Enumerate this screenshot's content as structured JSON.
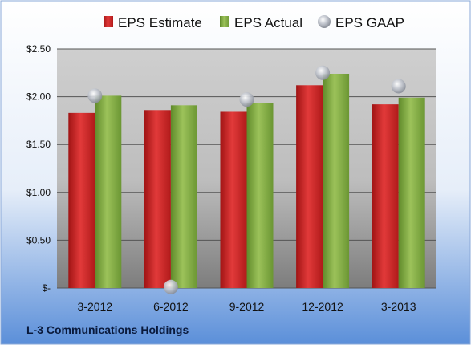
{
  "chart_data": {
    "type": "bar",
    "categories": [
      "3-2012",
      "6-2012",
      "9-2012",
      "12-2012",
      "3-2013"
    ],
    "series": [
      {
        "name": "EPS Estimate",
        "type": "bar",
        "color": "#d42a2a",
        "values": [
          1.83,
          1.86,
          1.85,
          2.12,
          1.92
        ]
      },
      {
        "name": "EPS Actual",
        "type": "bar",
        "color": "#8ab04a",
        "values": [
          2.01,
          1.91,
          1.93,
          2.24,
          1.99
        ]
      },
      {
        "name": "EPS GAAP",
        "type": "scatter",
        "color": "#b8bcc4",
        "values": [
          2.01,
          0.01,
          1.97,
          2.25,
          2.11
        ]
      }
    ],
    "ylim": [
      0,
      2.5
    ],
    "yticks": [
      0,
      0.5,
      1.0,
      1.5,
      2.0,
      2.5
    ],
    "ytick_labels": [
      "$-",
      "$0.50",
      "$1.00",
      "$1.50",
      "$2.00",
      "$2.50"
    ],
    "grid": true,
    "legend": "top-center",
    "footer": "L-3 Communications Holdings"
  },
  "colors": {
    "background_top": "#ffffff",
    "background_bottom": "#5b8fd9",
    "plot_top": "#c8c8c8",
    "plot_bottom": "#7a7a7a"
  }
}
